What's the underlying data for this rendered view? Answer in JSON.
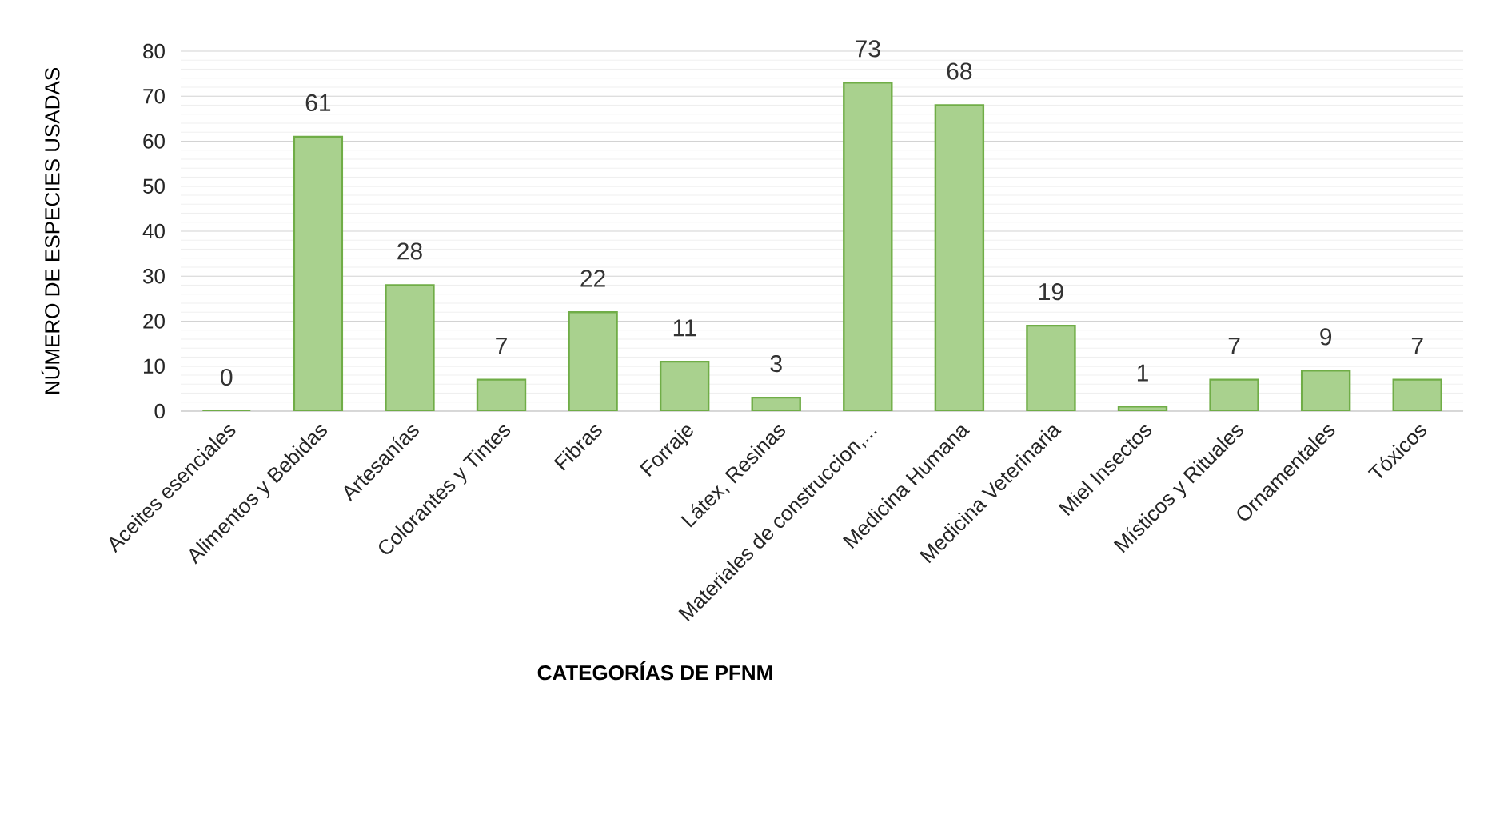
{
  "chart_data": {
    "type": "bar",
    "xlabel": "CATEGORÍAS DE PFNM",
    "ylabel": "NÚMERO DE ESPECIES USADAS",
    "categories": [
      "Aceites esenciales",
      "Alimentos y Bebidas",
      "Artesanías",
      "Colorantes y Tintes",
      "Fibras",
      "Forraje",
      "Látex, Resinas",
      "Materiales de construccion,...",
      "Medicina Humana",
      "Medicina Veterinaria",
      "Miel Insectos",
      "Místicos y Rituales",
      "Ornamentales",
      "Tóxicos"
    ],
    "values": [
      0,
      61,
      28,
      7,
      22,
      11,
      3,
      73,
      68,
      19,
      1,
      7,
      9,
      7
    ],
    "color": "#a9d18e",
    "ylim": [
      0,
      80
    ],
    "yticks": [
      0,
      10,
      20,
      30,
      40,
      50,
      60,
      70,
      80
    ],
    "grid": "y",
    "data_labels": true
  }
}
